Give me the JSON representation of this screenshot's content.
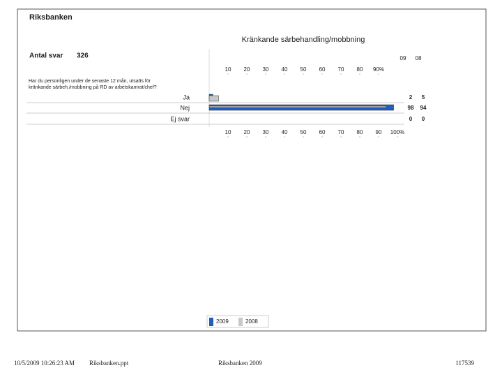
{
  "header": {
    "title": "Riksbanken",
    "footer_date": "10/5/2009 10:26:23 AM",
    "footer_file": "Riksbanken.ppt",
    "footer_center": "Riksbanken 2009",
    "footer_number": "117539"
  },
  "chart_data": {
    "type": "hbar",
    "title": "Kränkande särbehandling/mobbning",
    "respondents_label": "Antal svar",
    "respondents": 326,
    "question": [
      "Har du personligen under de senaste 12 mån, utsatts för",
      "kränkande särbeh./mobbning på RD av arbetskamrat/chef?"
    ],
    "column_headers": [
      "09",
      "08"
    ],
    "categories": [
      "Ja",
      "Nej",
      "Ej svar"
    ],
    "series": [
      {
        "name": "2009",
        "color": "#1f5fbf",
        "values": [
          2,
          98,
          0
        ]
      },
      {
        "name": "2008",
        "color": "#c8c8c8",
        "values": [
          5,
          94,
          0
        ]
      }
    ],
    "xlim": [
      0,
      100
    ],
    "xticks_top": [
      10,
      20,
      30,
      40,
      50,
      60,
      70,
      80,
      {
        "value": 90,
        "label": "90%"
      }
    ],
    "xticks": [
      10,
      20,
      30,
      40,
      50,
      60,
      70,
      80,
      90,
      {
        "value": 100,
        "label": "100%"
      }
    ],
    "legend": "bottom"
  }
}
